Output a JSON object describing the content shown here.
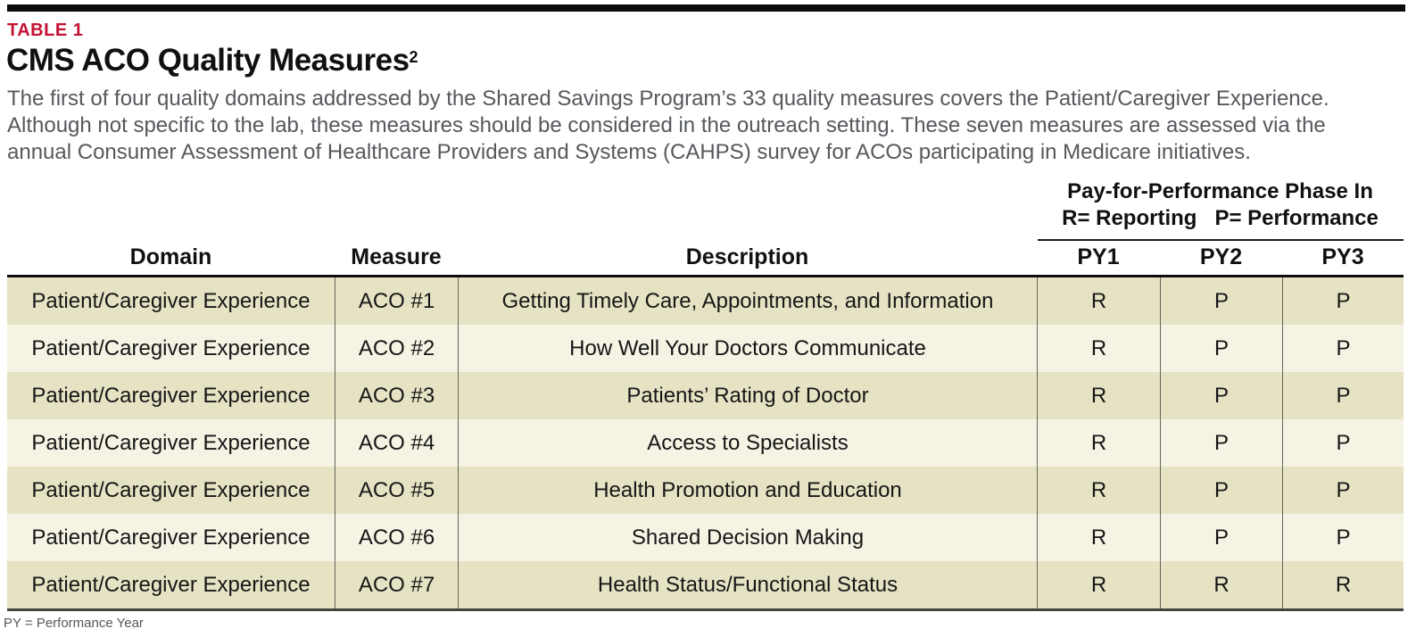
{
  "table_label": "TABLE 1",
  "title": {
    "text": "CMS ACO Quality Measures",
    "superscript": "2"
  },
  "intro": {
    "lines": [
      "The first of four quality domains addressed by the Shared Savings Program’s 33 quality measures covers the Patient/Caregiver Experience.",
      "Although not specific to the lab, these measures should be considered in the outreach setting. These seven measures are assessed via the",
      "annual Consumer Assessment of Healthcare Providers and Systems (CAHPS) survey for ACOs participating in Medicare initiatives."
    ]
  },
  "phase_header": {
    "line1": "Pay-for-Performance Phase In",
    "line2": "R= Reporting   P= Performance"
  },
  "columns": {
    "domain": "Domain",
    "measure": "Measure",
    "description": "Description",
    "py1": "PY1",
    "py2": "PY2",
    "py3": "PY3"
  },
  "rows": [
    {
      "domain": "Patient/Caregiver Experience",
      "measure": "ACO #1",
      "description": "Getting Timely Care, Appointments, and Information",
      "py1": "R",
      "py2": "P",
      "py3": "P"
    },
    {
      "domain": "Patient/Caregiver Experience",
      "measure": "ACO #2",
      "description": "How Well Your Doctors Communicate",
      "py1": "R",
      "py2": "P",
      "py3": "P"
    },
    {
      "domain": "Patient/Caregiver Experience",
      "measure": "ACO #3",
      "description": "Patients’ Rating of Doctor",
      "py1": "R",
      "py2": "P",
      "py3": "P"
    },
    {
      "domain": "Patient/Caregiver Experience",
      "measure": "ACO #4",
      "description": "Access to Specialists",
      "py1": "R",
      "py2": "P",
      "py3": "P"
    },
    {
      "domain": "Patient/Caregiver Experience",
      "measure": "ACO #5",
      "description": "Health Promotion and Education",
      "py1": "R",
      "py2": "P",
      "py3": "P"
    },
    {
      "domain": "Patient/Caregiver Experience",
      "measure": "ACO #6",
      "description": "Shared Decision Making",
      "py1": "R",
      "py2": "P",
      "py3": "P"
    },
    {
      "domain": "Patient/Caregiver Experience",
      "measure": "ACO #7",
      "description": "Health Status/Functional Status",
      "py1": "R",
      "py2": "R",
      "py3": "R"
    }
  ],
  "footnote": "PY = Performance Year",
  "colors": {
    "accent_red": "#c41233",
    "row_odd_background": "#e6e3c4",
    "row_even_background": "#f5f3e3",
    "body_text_gray": "#55585c",
    "top_rule_black": "#0b0b0b"
  }
}
